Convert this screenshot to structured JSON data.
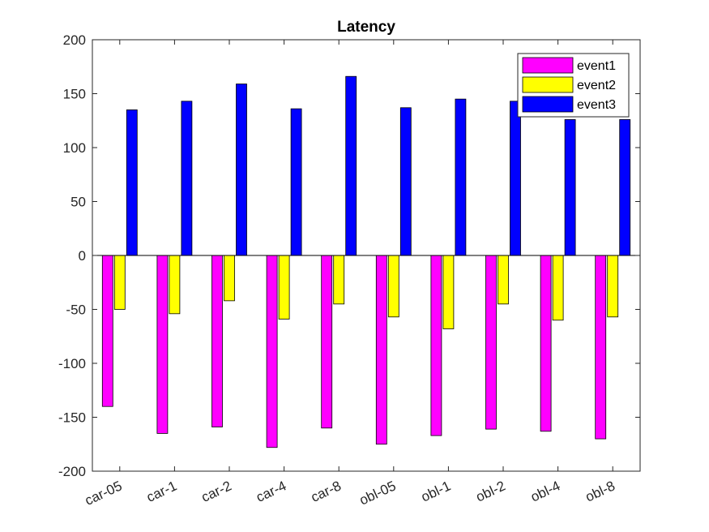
{
  "chart_data": {
    "type": "bar",
    "title": "Latency",
    "xlabel": "",
    "ylabel": "",
    "ylim": [
      -200,
      200
    ],
    "yticks": [
      -200,
      -150,
      -100,
      -50,
      0,
      50,
      100,
      150,
      200
    ],
    "grid": false,
    "legend_position": "top-right",
    "categories": [
      "car-05",
      "car-1",
      "car-2",
      "car-4",
      "car-8",
      "obl-05",
      "obl-1",
      "obl-2",
      "obl-4",
      "obl-8"
    ],
    "series": [
      {
        "name": "event1",
        "color": "#ff00ff",
        "values": [
          -140,
          -165,
          -159,
          -178,
          -160,
          -175,
          -167,
          -161,
          -163,
          -170
        ]
      },
      {
        "name": "event2",
        "color": "#ffff00",
        "values": [
          -50,
          -54,
          -42,
          -59,
          -45,
          -57,
          -68,
          -45,
          -60,
          -57
        ]
      },
      {
        "name": "event3",
        "color": "#0000ff",
        "values": [
          135,
          143,
          159,
          136,
          166,
          137,
          145,
          143,
          126,
          126
        ]
      }
    ]
  }
}
